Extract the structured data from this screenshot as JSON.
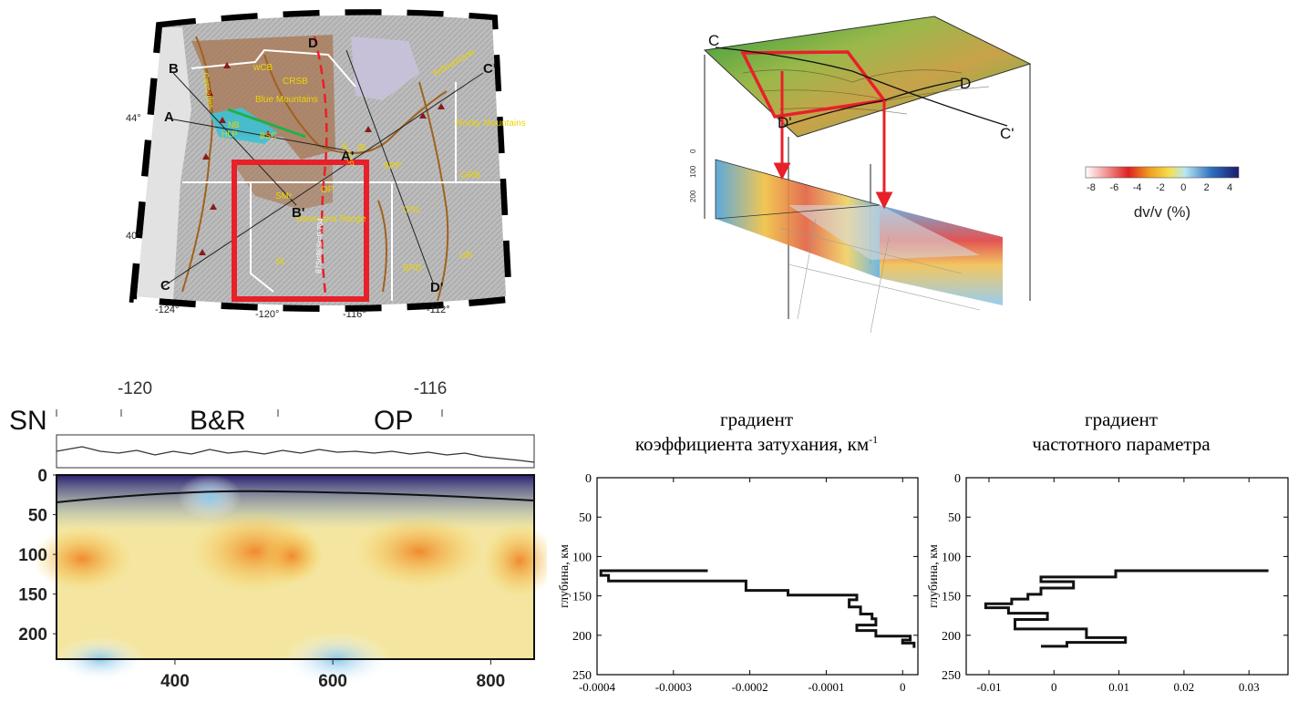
{
  "map_panel": {
    "lat_labels": [
      "44°",
      "40°"
    ],
    "lon_labels": [
      "-124°",
      "-120°",
      "-116°",
      "-112°"
    ],
    "profile_letters": [
      {
        "label": "B"
      },
      {
        "label": "A"
      },
      {
        "label": "A'"
      },
      {
        "label": "B'"
      },
      {
        "label": "C"
      },
      {
        "label": "C'"
      },
      {
        "label": "D"
      },
      {
        "label": "D'"
      }
    ],
    "regions": [
      "wCB",
      "CRSB",
      "Blue Mountains",
      "IB",
      "Yellowstone",
      "Rocky Mountains",
      "SRP",
      "GRB",
      "SMr",
      "OP",
      "Basin and Range",
      "GSL",
      "UB",
      "SL",
      "BRD",
      "HLP",
      "NB",
      "BSC",
      "WSRP",
      "Cascades"
    ],
    "vertical_annotation": "87Sr/86Sr=0.704",
    "colors": {
      "relief_bg": "#bdbdbd",
      "province_brown": "#a87652",
      "outline_brown": "#a0621e",
      "highlight_red": "#e8202a",
      "label_yellow": "#ecd400",
      "lake_blue": "#3ec2d6"
    }
  },
  "block_panel": {
    "corner_labels": [
      "C",
      "D",
      "D'",
      "C'"
    ],
    "depth_ticks": [
      "0",
      "100",
      "200"
    ],
    "colors": {
      "arrow": "#e8202a",
      "frame": "#222222"
    }
  },
  "colorbar": {
    "label": "dv/v (%)",
    "ticks": [
      "-8",
      "-6",
      "-4",
      "-2",
      "0",
      "2",
      "4"
    ],
    "colors": [
      "#ffffff",
      "#f4a0a0",
      "#e02020",
      "#f0a020",
      "#f5e050",
      "#b8e6f0",
      "#3070c0",
      "#1a1a6a"
    ]
  },
  "section_panel": {
    "top_ticks": [
      "-120",
      "-116"
    ],
    "province_labels": [
      "SN",
      "B&R",
      "OP"
    ],
    "y_ticks": [
      "0",
      "50",
      "100",
      "150",
      "200"
    ],
    "x_ticks": [
      "400",
      "600",
      "800"
    ]
  },
  "chart_data": [
    {
      "type": "line",
      "title": "градиент коэффициента затухания, км",
      "title_line1": "градиент",
      "title_line2": "коэффициента затухания, км",
      "title_superscript": "-1",
      "ylabel": "глубина, км",
      "xlim": [
        -0.0004,
        2e-05
      ],
      "ylim": [
        250,
        0
      ],
      "x_ticks": [
        "-0.0004",
        "-0.0003",
        "-0.0002",
        "-0.0001",
        "0"
      ],
      "y_ticks": [
        "0",
        "50",
        "100",
        "150",
        "200",
        "250"
      ],
      "series": [
        {
          "x": [
            -0.000255,
            -0.000395,
            -0.000395,
            -0.000385,
            -0.000385,
            -0.000205,
            -0.000205,
            -0.00015,
            -0.00015,
            -6e-05,
            -6e-05,
            -7e-05,
            -7e-05,
            -5.5e-05,
            -5.5e-05,
            -4e-05,
            -4e-05,
            -3.5e-05,
            -3.5e-05,
            -6e-05,
            -6e-05,
            -3.5e-05,
            -3.5e-05,
            1e-05,
            1e-05,
            0.0,
            0.0,
            1.5e-05,
            1.5e-05
          ],
          "y": [
            118,
            118,
            124,
            124,
            131,
            131,
            143,
            143,
            149,
            149,
            155,
            155,
            164,
            164,
            173,
            173,
            179,
            179,
            187,
            187,
            194,
            194,
            201,
            201,
            206,
            206,
            210,
            210,
            216
          ]
        }
      ]
    },
    {
      "type": "line",
      "title": "градиент частотного параметра",
      "title_line1": "градиент",
      "title_line2": "частотного параметра",
      "ylabel": "глубина, км",
      "xlim": [
        -0.0135,
        0.036
      ],
      "ylim": [
        250,
        0
      ],
      "x_ticks": [
        "-0.01",
        "0",
        "0.01",
        "0.02",
        "0.03"
      ],
      "y_ticks": [
        "0",
        "50",
        "100",
        "150",
        "200",
        "250"
      ],
      "series": [
        {
          "x": [
            0.033,
            0.0095,
            0.0095,
            -0.002,
            -0.002,
            0.003,
            0.003,
            -0.002,
            -0.002,
            -0.004,
            -0.004,
            -0.0065,
            -0.0065,
            -0.0105,
            -0.0105,
            -0.007,
            -0.007,
            -0.001,
            -0.001,
            -0.006,
            -0.006,
            0.005,
            0.005,
            0.011,
            0.011,
            0.002,
            0.002,
            -0.002
          ],
          "y": [
            118,
            118,
            126,
            126,
            132,
            132,
            140,
            140,
            148,
            148,
            154,
            154,
            160,
            160,
            165,
            165,
            172,
            172,
            180,
            180,
            192,
            192,
            203,
            203,
            209,
            209,
            214,
            214
          ]
        }
      ]
    }
  ]
}
